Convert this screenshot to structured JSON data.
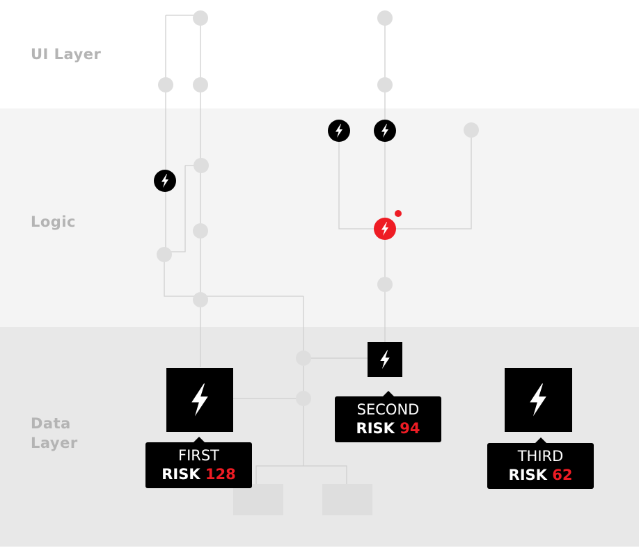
{
  "layers": [
    {
      "label": "UI Layer"
    },
    {
      "label": "Logic"
    },
    {
      "label": "Data Layer"
    }
  ],
  "risks": [
    {
      "name": "FIRST",
      "risk_word": "RISK",
      "score": "128"
    },
    {
      "name": "SECOND",
      "risk_word": "RISK",
      "score": "94"
    },
    {
      "name": "THIRD",
      "risk_word": "RISK",
      "score": "62"
    }
  ],
  "colors": {
    "accent": "#ee1c24",
    "node": "#dedede",
    "line": "#cfcfcf",
    "label": "#b4b4b4",
    "dark": "#000000"
  },
  "icons": {
    "lightning": "lightning-bolt-icon",
    "dot": "alert-dot-icon"
  }
}
